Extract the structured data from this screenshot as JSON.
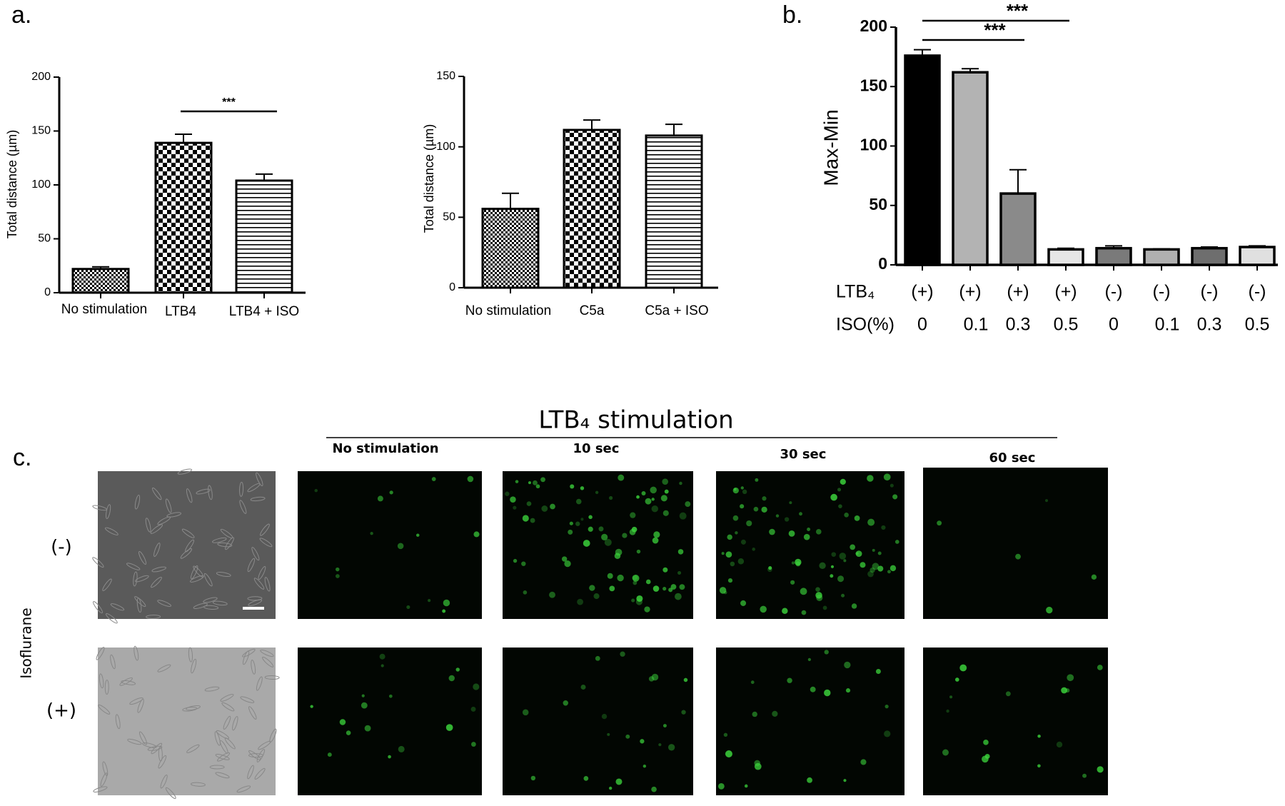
{
  "chart_data": [
    {
      "type": "bar",
      "panel_label": "a.",
      "ylabel": "Total distance (µm)",
      "categories": [
        "No stimulation",
        "LTB4",
        "LTB4 + ISO"
      ],
      "values": [
        22,
        139,
        104
      ],
      "errors": [
        2,
        8,
        6
      ],
      "color": "#000000",
      "ylim": [
        0,
        200
      ],
      "yticks": [
        0,
        50,
        100,
        150,
        200
      ],
      "annotations": [
        "***"
      ]
    },
    {
      "type": "bar",
      "ylabel": "Total distance (µm)",
      "categories": [
        "No stimulation",
        "C5a",
        "C5a + ISO"
      ],
      "values": [
        56,
        112,
        108
      ],
      "errors": [
        11,
        7,
        8
      ],
      "color": "#000000",
      "ylim": [
        0,
        150
      ],
      "yticks": [
        0,
        50,
        100,
        150
      ]
    },
    {
      "type": "bar",
      "panel_label": "b.",
      "ylabel": "Max-Min",
      "row_labels": [
        "LTB₄",
        "ISO(%)"
      ],
      "categories": [
        "(+)",
        "(+)",
        "(+)",
        "(+)",
        "(-)",
        "(-)",
        "(-)",
        "(-)"
      ],
      "iso_values": [
        "0",
        "0.1",
        "0.3",
        "0.5",
        "0",
        "0.1",
        "0.3",
        "0.5"
      ],
      "values": [
        176,
        162,
        60,
        13,
        14,
        13,
        14,
        15
      ],
      "errors": [
        5,
        3,
        20,
        1,
        2,
        0.5,
        1,
        1
      ],
      "colors": [
        "#000000",
        "#b3b3b3",
        "#8a8a8a",
        "#e6e6e6",
        "#7a7a7a",
        "#b0b0b0",
        "#6e6e6e",
        "#e0e0e0"
      ],
      "ylim": [
        0,
        200
      ],
      "yticks": [
        0,
        50,
        100,
        150,
        200
      ],
      "annotations": [
        "***",
        "***"
      ]
    }
  ],
  "panel_c": {
    "label": "c.",
    "title": "LTB₄ stimulation",
    "columns": [
      "No stimulation",
      "10 sec",
      "30 sec",
      "60 sec"
    ],
    "row_title": "Isoflurane",
    "rows": [
      "(-)",
      "(+)"
    ]
  }
}
